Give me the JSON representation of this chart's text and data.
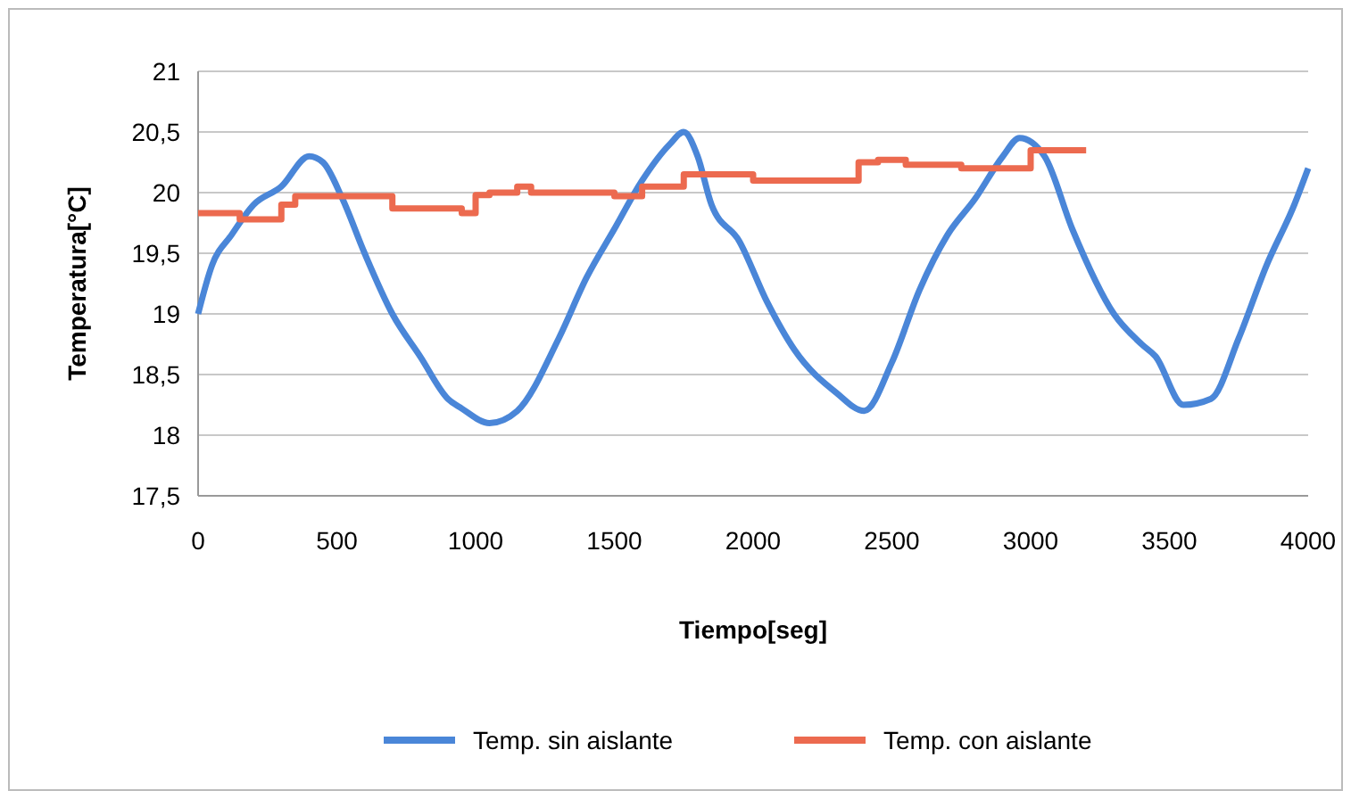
{
  "chart_data": {
    "type": "line",
    "xlabel": "Tiempo[seg]",
    "ylabel": "Temperatura[°C]",
    "xlim": [
      0,
      4000
    ],
    "xticks": [
      0,
      500,
      1000,
      1500,
      2000,
      2500,
      3000,
      3500,
      4000
    ],
    "ylim": [
      17.5,
      21
    ],
    "yticks": [
      {
        "value": 17.5,
        "label": "17,5"
      },
      18,
      {
        "value": 18.5,
        "label": "18,5"
      },
      19,
      {
        "value": 19.5,
        "label": "19,5"
      },
      20,
      {
        "value": 20.5,
        "label": "20,5"
      },
      21
    ],
    "grid": "y",
    "legend": "bottom",
    "marker": "none",
    "line_style": "solid",
    "series": [
      {
        "name": "Temp. sin aislante",
        "color": "#4a86d8",
        "x": [
          0,
          50,
          120,
          200,
          300,
          400,
          450,
          520,
          600,
          700,
          800,
          900,
          950,
          1050,
          1150,
          1300,
          1400,
          1500,
          1600,
          1700,
          1750,
          1800,
          1850,
          1950,
          2050,
          2150,
          2300,
          2400,
          2500,
          2600,
          2700,
          2800,
          2900,
          2960,
          3050,
          3150,
          3300,
          3400,
          3450,
          3550,
          3650,
          3750,
          3850,
          3950,
          4000
        ],
        "values": [
          19.0,
          19.4,
          19.65,
          19.9,
          20.05,
          20.3,
          20.25,
          19.95,
          19.5,
          19.0,
          18.65,
          18.3,
          18.22,
          18.1,
          18.2,
          18.8,
          19.3,
          19.7,
          20.1,
          20.4,
          20.5,
          20.3,
          19.9,
          19.6,
          19.1,
          18.7,
          18.35,
          18.2,
          18.6,
          19.2,
          19.65,
          19.95,
          20.3,
          20.45,
          20.3,
          19.7,
          19.0,
          18.75,
          18.65,
          18.25,
          18.3,
          18.8,
          19.4,
          19.9,
          20.2
        ]
      },
      {
        "name": "Temp. con aislante",
        "color": "#ec6a4f",
        "type": "step",
        "x": [
          0,
          150,
          300,
          350,
          700,
          950,
          1000,
          1050,
          1150,
          1200,
          1500,
          1600,
          1750,
          2000,
          2380,
          2450,
          2550,
          2750,
          3000,
          3200
        ],
        "values": [
          19.83,
          19.78,
          19.9,
          19.97,
          19.87,
          19.83,
          19.98,
          20.0,
          20.05,
          20.0,
          19.97,
          20.05,
          20.15,
          20.1,
          20.25,
          20.27,
          20.23,
          20.2,
          20.35,
          20.35
        ]
      }
    ]
  }
}
